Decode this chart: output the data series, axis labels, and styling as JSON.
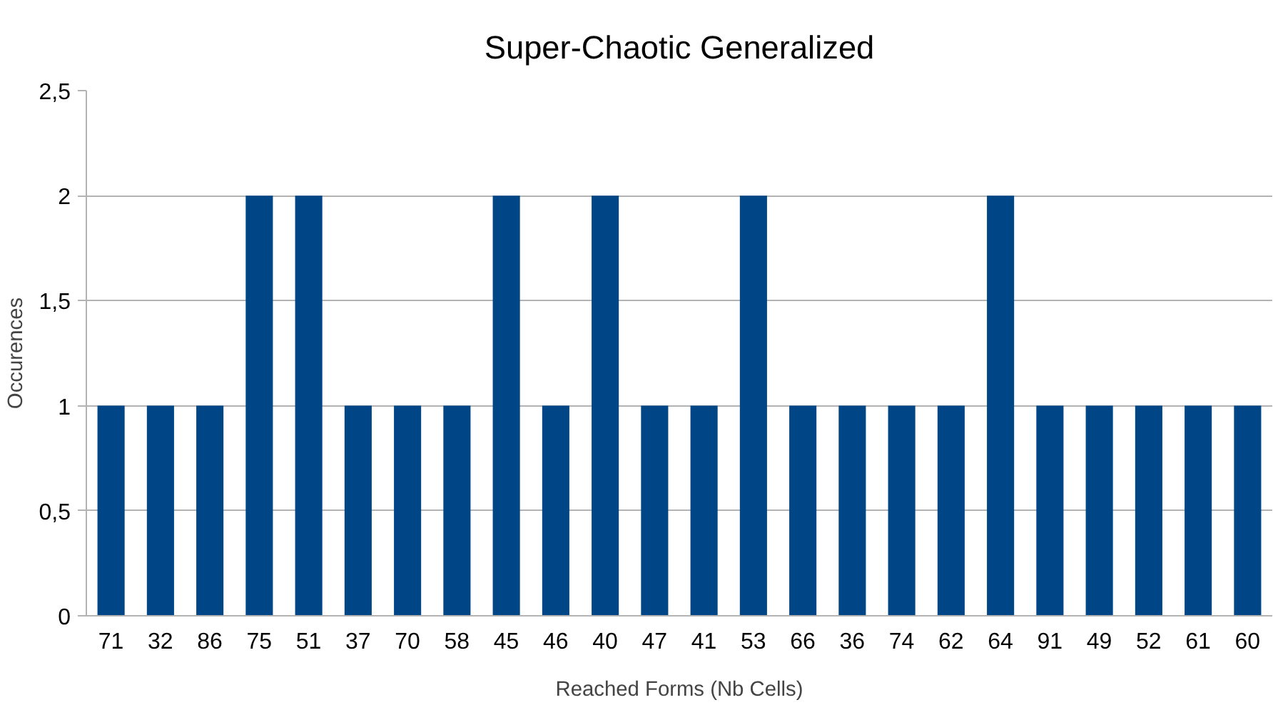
{
  "chart_data": {
    "type": "bar",
    "title": "Super-Chaotic Generalized",
    "xlabel": "Reached Forms (Nb Cells)",
    "ylabel": "Occurences",
    "categories": [
      "71",
      "32",
      "86",
      "75",
      "51",
      "37",
      "70",
      "58",
      "45",
      "46",
      "40",
      "47",
      "41",
      "53",
      "66",
      "36",
      "74",
      "62",
      "64",
      "91",
      "49",
      "52",
      "61",
      "60"
    ],
    "values": [
      1,
      1,
      1,
      2,
      2,
      1,
      1,
      1,
      2,
      1,
      2,
      1,
      1,
      2,
      1,
      1,
      1,
      1,
      2,
      1,
      1,
      1,
      1,
      1
    ],
    "color": "#004586",
    "ylim": [
      0,
      2.5
    ],
    "yticks": [
      0,
      {
        "value": 0.5,
        "label": "0,5"
      },
      1,
      {
        "value": 1.5,
        "label": "1,5"
      },
      2,
      {
        "value": 2.5,
        "label": "2,5"
      }
    ],
    "grid": "y"
  }
}
